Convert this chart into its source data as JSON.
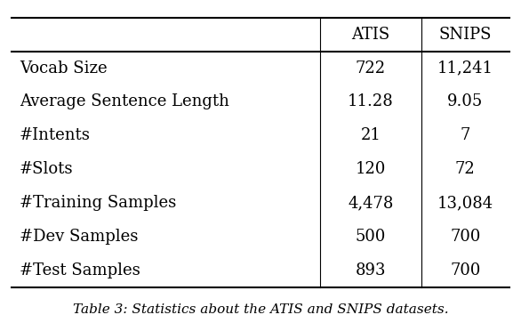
{
  "col_headers": [
    "",
    "ATIS",
    "SNIPS"
  ],
  "rows": [
    [
      "Vocab Size",
      "722",
      "11,241"
    ],
    [
      "Average Sentence Length",
      "11.28",
      "9.05"
    ],
    [
      "#Intents",
      "21",
      "7"
    ],
    [
      "#Slots",
      "120",
      "72"
    ],
    [
      "#Training Samples",
      "4,478",
      "13,084"
    ],
    [
      "#Dev Samples",
      "500",
      "700"
    ],
    [
      "#Test Samples",
      "893",
      "700"
    ]
  ],
  "caption": "Table 3: Statistics about the ATIS and SNIPS datasets.",
  "background_color": "#ffffff",
  "text_color": "#000000",
  "font_size": 13,
  "caption_font_size": 11,
  "figsize": [
    5.86,
    3.72
  ],
  "dpi": 100
}
